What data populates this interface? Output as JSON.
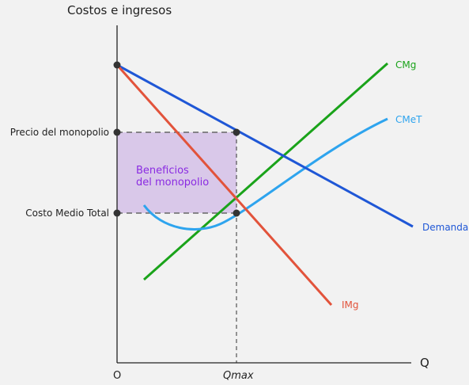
{
  "axes": {
    "y_title": "Costos e ingresos",
    "x_title": "Q",
    "origin": "O",
    "q_max": "Qmax",
    "price_label": "Precio del monopolio",
    "atc_label": "Costo Medio Total"
  },
  "profit_area": {
    "line1": "Beneficios",
    "line2": "del monopolio",
    "color": "#d6c3e8",
    "text_color": "#8a2be2"
  },
  "curves": {
    "demand": {
      "label": "Demanda",
      "color": "#1f57d6"
    },
    "mr": {
      "label": "IMg",
      "color": "#e2533b"
    },
    "mc": {
      "label": "CMg",
      "color": "#1aa31a"
    },
    "atc": {
      "label": "CMeT",
      "color": "#2ea4ee"
    }
  },
  "colors": {
    "background": "#f2f2f2",
    "axis": "#222222",
    "points": "#333333",
    "dashes": "#666666"
  }
}
